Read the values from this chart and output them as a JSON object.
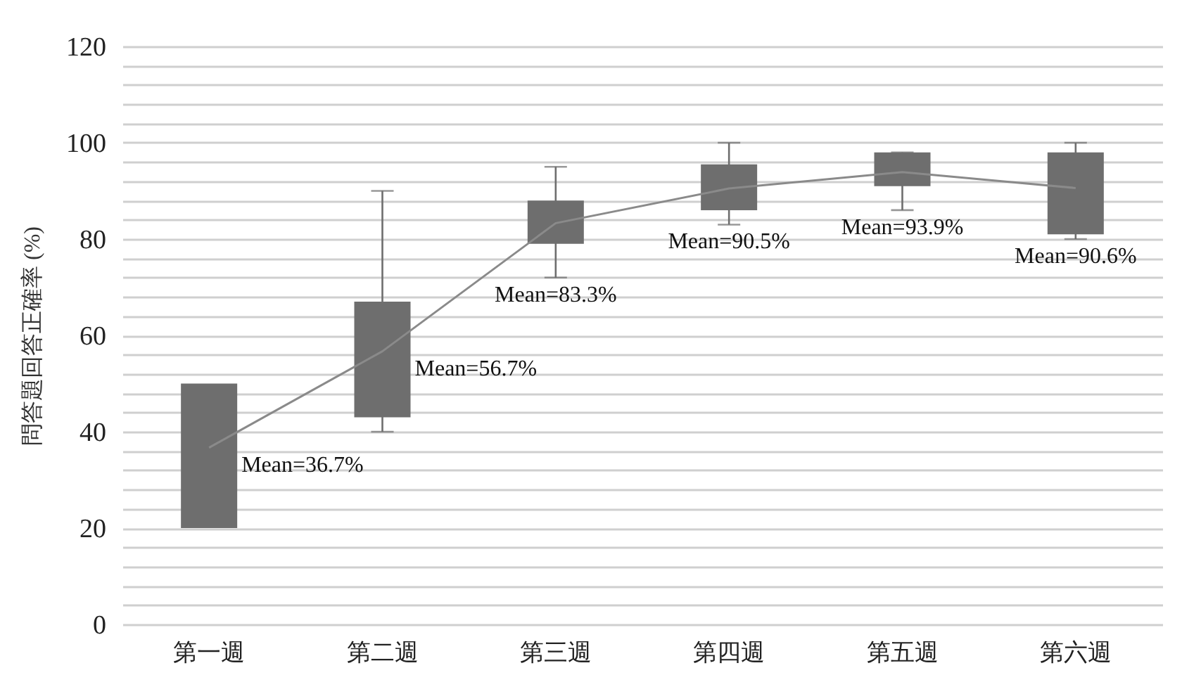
{
  "chart_data": {
    "type": "bar",
    "ylabel": "問答題回答正確率 (%)",
    "categories": [
      "第一週",
      "第二週",
      "第三週",
      "第四週",
      "第五週",
      "第六週"
    ],
    "series": [
      {
        "color": "#6e6e6e",
        "base": [
          20,
          43,
          79,
          86,
          91,
          81
        ],
        "values": [
          30,
          24,
          9,
          9.5,
          7,
          17
        ],
        "errors": [
          null,
          [
            40,
            90
          ],
          [
            72,
            95
          ],
          [
            83,
            100
          ],
          [
            86,
            98
          ],
          [
            80,
            100
          ]
        ]
      },
      {
        "type": "line",
        "color": "#8a8a8a",
        "values": [
          36.7,
          56.7,
          83.3,
          90.5,
          93.9,
          90.6
        ],
        "value_labels": [
          "Mean=36.7%",
          "Mean=56.7%",
          "Mean=83.3%",
          "Mean=90.5%",
          "Mean=93.9%",
          "Mean=90.6%"
        ]
      }
    ],
    "ylim": [
      0,
      120
    ],
    "yticks": [
      0,
      {
        "value": 4,
        "label": null
      },
      {
        "value": 8,
        "label": null
      },
      {
        "value": 12,
        "label": null
      },
      {
        "value": 16,
        "label": null
      },
      20,
      {
        "value": 24,
        "label": null
      },
      {
        "value": 28,
        "label": null
      },
      {
        "value": 32,
        "label": null
      },
      {
        "value": 36,
        "label": null
      },
      40,
      {
        "value": 44,
        "label": null
      },
      {
        "value": 48,
        "label": null
      },
      {
        "value": 52,
        "label": null
      },
      {
        "value": 56,
        "label": null
      },
      60,
      {
        "value": 64,
        "label": null
      },
      {
        "value": 68,
        "label": null
      },
      {
        "value": 72,
        "label": null
      },
      {
        "value": 76,
        "label": null
      },
      80,
      {
        "value": 84,
        "label": null
      },
      {
        "value": 88,
        "label": null
      },
      {
        "value": 92,
        "label": null
      },
      {
        "value": 96,
        "label": null
      },
      100,
      {
        "value": 104,
        "label": null
      },
      {
        "value": 108,
        "label": null
      },
      {
        "value": 112,
        "label": null
      },
      {
        "value": 116,
        "label": null
      },
      120
    ],
    "grid": "y"
  }
}
